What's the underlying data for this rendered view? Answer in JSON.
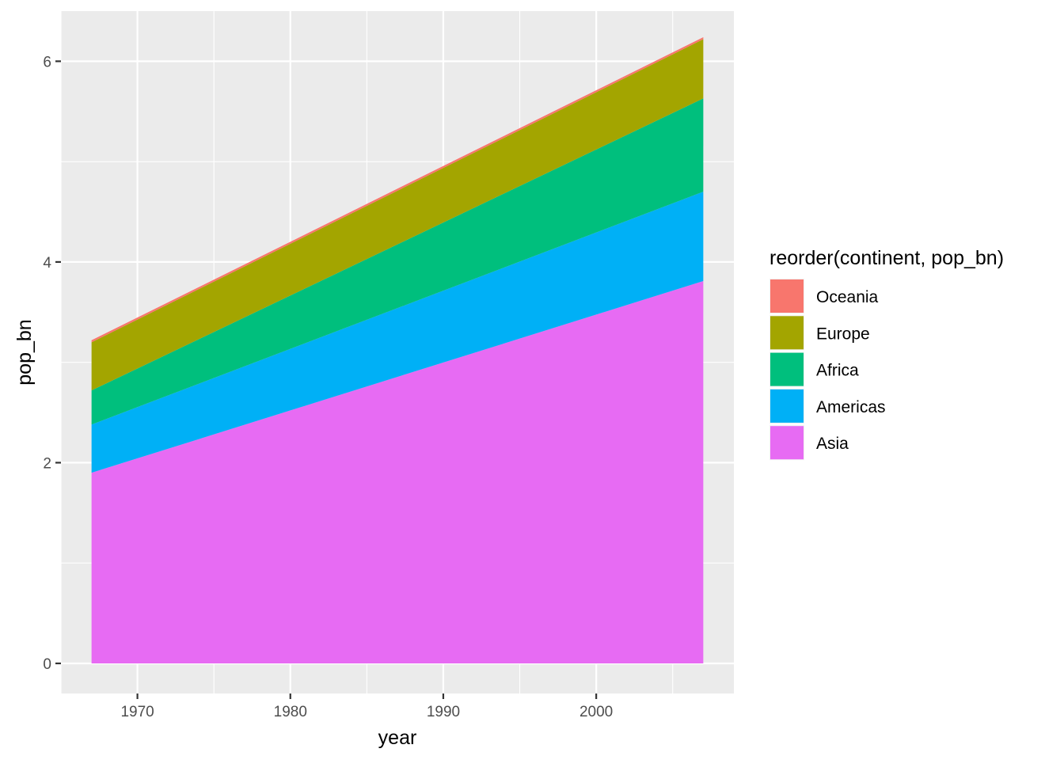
{
  "chart_data": {
    "type": "area",
    "stacked": true,
    "xlabel": "year",
    "ylabel": "pop_bn",
    "xlim": [
      1965,
      2009
    ],
    "ylim": [
      -0.3,
      6.5
    ],
    "x_ticks": [
      1970,
      1980,
      1990,
      2000
    ],
    "y_ticks": [
      0,
      2,
      4,
      6
    ],
    "grid": true,
    "legend_position": "right",
    "legend_title": "reorder(continent, pop_bn)",
    "x": [
      1967,
      2007
    ],
    "series": [
      {
        "name": "Asia",
        "color": "#E76BF3",
        "values": [
          1.9,
          3.81
        ]
      },
      {
        "name": "Americas",
        "color": "#00B0F6",
        "values": [
          0.48,
          0.89
        ]
      },
      {
        "name": "Africa",
        "color": "#00BF7D",
        "values": [
          0.34,
          0.93
        ]
      },
      {
        "name": "Europe",
        "color": "#A3A500",
        "values": [
          0.48,
          0.59
        ]
      },
      {
        "name": "Oceania",
        "color": "#F8766D",
        "values": [
          0.02,
          0.02
        ]
      }
    ],
    "legend_order": [
      "Oceania",
      "Europe",
      "Africa",
      "Americas",
      "Asia"
    ]
  }
}
